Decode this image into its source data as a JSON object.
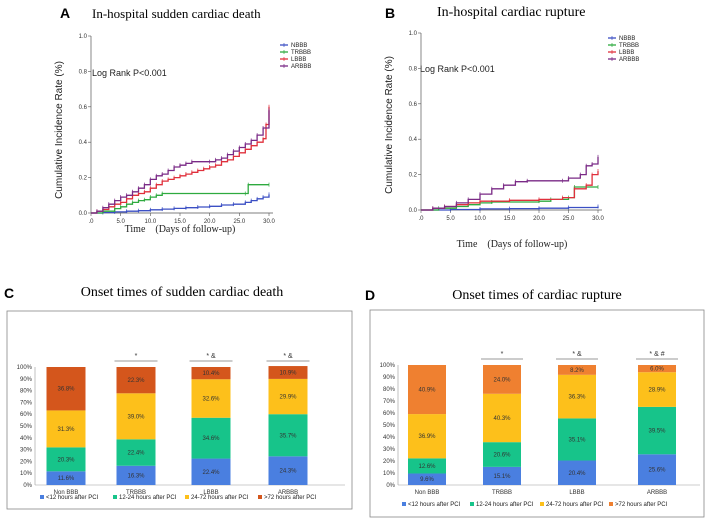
{
  "panels": {
    "A": "A",
    "B": "B",
    "C": "C",
    "D": "D"
  },
  "chart_data": [
    {
      "id": "A",
      "type": "line",
      "title": "In-hospital sudden cardiac death",
      "ylabel": "Cumulative Incidence Rate (%)",
      "xlabel": "Time　(Days of follow-up)",
      "xlim": [
        0,
        30
      ],
      "ylim": [
        0,
        1.0
      ],
      "xticks": [
        ".0",
        "5.0",
        "10.0",
        "15.0",
        "20.0",
        "25.0",
        "30.0"
      ],
      "yticks": [
        "0.0",
        "0.2",
        "0.4",
        "0.6",
        "0.8",
        "1.0"
      ],
      "annotation": "Log Rank  P<0.001",
      "legend": [
        "NBBB",
        "TRBBB",
        "LBBB",
        "ARBBB"
      ],
      "colors": [
        "#3b4fc4",
        "#2eaa3f",
        "#e0303c",
        "#7a2a86"
      ],
      "series": [
        {
          "name": "NBBB",
          "points": [
            [
              0,
              0
            ],
            [
              2,
              0.003
            ],
            [
              4,
              0.006
            ],
            [
              6,
              0.01
            ],
            [
              8,
              0.013
            ],
            [
              10,
              0.018
            ],
            [
              12,
              0.022
            ],
            [
              14,
              0.026
            ],
            [
              16,
              0.03
            ],
            [
              18,
              0.034
            ],
            [
              20,
              0.038
            ],
            [
              22,
              0.045
            ],
            [
              24,
              0.05
            ],
            [
              26,
              0.06
            ],
            [
              27,
              0.07
            ],
            [
              28,
              0.08
            ],
            [
              29,
              0.09
            ],
            [
              30,
              0.105
            ]
          ]
        },
        {
          "name": "TRBBB",
          "points": [
            [
              0,
              0
            ],
            [
              2,
              0.01
            ],
            [
              4,
              0.025
            ],
            [
              5,
              0.035
            ],
            [
              6,
              0.05
            ],
            [
              7,
              0.06
            ],
            [
              8,
              0.07
            ],
            [
              9,
              0.075
            ],
            [
              10,
              0.09
            ],
            [
              11,
              0.1
            ],
            [
              12,
              0.11
            ],
            [
              26,
              0.11
            ],
            [
              26.5,
              0.16
            ],
            [
              30,
              0.16
            ]
          ]
        },
        {
          "name": "LBBB",
          "points": [
            [
              0,
              0
            ],
            [
              1,
              0.01
            ],
            [
              2,
              0.02
            ],
            [
              3,
              0.035
            ],
            [
              4,
              0.05
            ],
            [
              5,
              0.06
            ],
            [
              6,
              0.08
            ],
            [
              7,
              0.1
            ],
            [
              8,
              0.11
            ],
            [
              9,
              0.12
            ],
            [
              10,
              0.14
            ],
            [
              11,
              0.16
            ],
            [
              12,
              0.18
            ],
            [
              13,
              0.19
            ],
            [
              14,
              0.2
            ],
            [
              15,
              0.21
            ],
            [
              16,
              0.22
            ],
            [
              17,
              0.23
            ],
            [
              18,
              0.24
            ],
            [
              19,
              0.25
            ],
            [
              20,
              0.26
            ],
            [
              21,
              0.27
            ],
            [
              22,
              0.29
            ],
            [
              23,
              0.3
            ],
            [
              24,
              0.32
            ],
            [
              25,
              0.34
            ],
            [
              26,
              0.36
            ],
            [
              27,
              0.38
            ],
            [
              28,
              0.4
            ],
            [
              29,
              0.42
            ],
            [
              29.5,
              0.5
            ],
            [
              30,
              0.6
            ]
          ]
        },
        {
          "name": "ARBBB",
          "points": [
            [
              0,
              0
            ],
            [
              1,
              0.01
            ],
            [
              2,
              0.03
            ],
            [
              3,
              0.05
            ],
            [
              4,
              0.07
            ],
            [
              5,
              0.09
            ],
            [
              6,
              0.1
            ],
            [
              7,
              0.12
            ],
            [
              8,
              0.14
            ],
            [
              9,
              0.16
            ],
            [
              10,
              0.19
            ],
            [
              11,
              0.21
            ],
            [
              12,
              0.22
            ],
            [
              13,
              0.24
            ],
            [
              14,
              0.26
            ],
            [
              15,
              0.27
            ],
            [
              16,
              0.28
            ],
            [
              17,
              0.29
            ],
            [
              20,
              0.29
            ],
            [
              21,
              0.3
            ],
            [
              22,
              0.31
            ],
            [
              23,
              0.33
            ],
            [
              24,
              0.35
            ],
            [
              25,
              0.37
            ],
            [
              26,
              0.39
            ],
            [
              27,
              0.41
            ],
            [
              28,
              0.44
            ],
            [
              29,
              0.48
            ],
            [
              30,
              0.58
            ]
          ]
        }
      ]
    },
    {
      "id": "B",
      "type": "line",
      "title": "In-hospital cardiac rupture",
      "ylabel": "Cumulative Incidence Rate (%)",
      "xlabel": "Time　(Days of follow-up)",
      "xlim": [
        0,
        30
      ],
      "ylim": [
        0,
        1.0
      ],
      "xticks": [
        ".0",
        "5.0",
        "10.0",
        "15.0",
        "20.0",
        "25.0",
        "30.0"
      ],
      "yticks": [
        "0.0",
        "0.2",
        "0.4",
        "0.6",
        "0.8",
        "1.0"
      ],
      "annotation": "Log Rank  P<0.001",
      "legend": [
        "NBBB",
        "TRBBB",
        "LBBB",
        "ARBBB"
      ],
      "colors": [
        "#3b4fc4",
        "#2eaa3f",
        "#e0303c",
        "#7a2a86"
      ],
      "series": [
        {
          "name": "NBBB",
          "points": [
            [
              0,
              0
            ],
            [
              5,
              0.003
            ],
            [
              10,
              0.006
            ],
            [
              15,
              0.008
            ],
            [
              20,
              0.01
            ],
            [
              25,
              0.014
            ],
            [
              30,
              0.02
            ]
          ]
        },
        {
          "name": "TRBBB",
          "points": [
            [
              0,
              0
            ],
            [
              3,
              0.01
            ],
            [
              6,
              0.02
            ],
            [
              8,
              0.03
            ],
            [
              10,
              0.04
            ],
            [
              12,
              0.045
            ],
            [
              20,
              0.05
            ],
            [
              22,
              0.06
            ],
            [
              25,
              0.07
            ],
            [
              26,
              0.13
            ],
            [
              30,
              0.13
            ]
          ]
        },
        {
          "name": "LBBB",
          "points": [
            [
              0,
              0
            ],
            [
              2,
              0.01
            ],
            [
              4,
              0.02
            ],
            [
              6,
              0.03
            ],
            [
              8,
              0.04
            ],
            [
              10,
              0.05
            ],
            [
              15,
              0.055
            ],
            [
              20,
              0.06
            ],
            [
              24,
              0.07
            ],
            [
              26,
              0.12
            ],
            [
              28,
              0.14
            ],
            [
              29,
              0.2
            ],
            [
              30,
              0.22
            ]
          ]
        },
        {
          "name": "ARBBB",
          "points": [
            [
              0,
              0
            ],
            [
              2,
              0.01
            ],
            [
              4,
              0.02
            ],
            [
              6,
              0.04
            ],
            [
              8,
              0.06
            ],
            [
              10,
              0.09
            ],
            [
              12,
              0.12
            ],
            [
              14,
              0.14
            ],
            [
              16,
              0.16
            ],
            [
              18,
              0.165
            ],
            [
              24,
              0.165
            ],
            [
              25,
              0.18
            ],
            [
              27,
              0.2
            ],
            [
              28,
              0.25
            ],
            [
              29,
              0.26
            ],
            [
              30,
              0.3
            ]
          ]
        }
      ]
    },
    {
      "id": "C",
      "type": "bar",
      "title": "Onset times of sudden cardiac death",
      "categories": [
        "Non BBB",
        "TRBBB",
        "LBBB",
        "ARBBB"
      ],
      "yticks": [
        "0%",
        "10%",
        "20%",
        "30%",
        "40%",
        "50%",
        "60%",
        "70%",
        "80%",
        "90%",
        "100%"
      ],
      "significance": [
        "",
        "*",
        "* &",
        "* &"
      ],
      "legend": [
        "<12 hours after PCI",
        "12-24 hours after PCI",
        "24-72 hours after PCI",
        ">72 hours after PCI"
      ],
      "colors": [
        "#4a7fe0",
        "#17c48a",
        "#fdc01b",
        "#d4561c"
      ],
      "series": [
        {
          "name": "<12 hours after PCI",
          "values": [
            11.6,
            16.3,
            22.4,
            24.3
          ],
          "labels": [
            "11.6%",
            "16.3%",
            "22.4%",
            "24.3%"
          ]
        },
        {
          "name": "12-24 hours after PCI",
          "values": [
            20.3,
            22.4,
            34.6,
            35.7
          ],
          "labels": [
            "20.3%",
            "22.4%",
            "34.6%",
            "35.7%"
          ]
        },
        {
          "name": "24-72 hours after PCI",
          "values": [
            31.3,
            39.0,
            32.6,
            29.9
          ],
          "labels": [
            "31.3%",
            "39.0%",
            "32.6%",
            "29.9%"
          ]
        },
        {
          "name": ">72 hours after PCI",
          "values": [
            36.8,
            22.3,
            10.4,
            10.9
          ],
          "labels": [
            "36.8%",
            "22.3%",
            "10.4%",
            "10.9%"
          ]
        }
      ]
    },
    {
      "id": "D",
      "type": "bar",
      "title": "Onset times of cardiac rupture",
      "categories": [
        "Non BBB",
        "TRBBB",
        "LBBB",
        "ARBBB"
      ],
      "yticks": [
        "0%",
        "10%",
        "20%",
        "30%",
        "40%",
        "50%",
        "60%",
        "70%",
        "80%",
        "90%",
        "100%"
      ],
      "significance": [
        "",
        "*",
        "* &",
        "* & #"
      ],
      "legend": [
        "<12 hours after PCI",
        "12-24 hours after PCI",
        "24-72 hours after PCI",
        ">72 hours after PCI"
      ],
      "colors": [
        "#4a7fe0",
        "#17c48a",
        "#fdc01b",
        "#ef8030"
      ],
      "series": [
        {
          "name": "<12 hours after PCI",
          "values": [
            9.6,
            15.1,
            20.4,
            25.6
          ],
          "labels": [
            "9.6%",
            "15.1%",
            "20.4%",
            "25.6%"
          ]
        },
        {
          "name": "12-24 hours after PCI",
          "values": [
            12.6,
            20.6,
            35.1,
            39.5
          ],
          "labels": [
            "12.6%",
            "20.6%",
            "35.1%",
            "39.5%"
          ]
        },
        {
          "name": "24-72 hours after PCI",
          "values": [
            36.9,
            40.3,
            36.3,
            28.9
          ],
          "labels": [
            "36.9%",
            "40.3%",
            "36.3%",
            "28.9%"
          ]
        },
        {
          "name": ">72 hours after PCI",
          "values": [
            40.9,
            24.0,
            8.2,
            6.0
          ],
          "labels": [
            "40.9%",
            "24.0%",
            "8.2%",
            "6.0%"
          ]
        }
      ]
    }
  ]
}
